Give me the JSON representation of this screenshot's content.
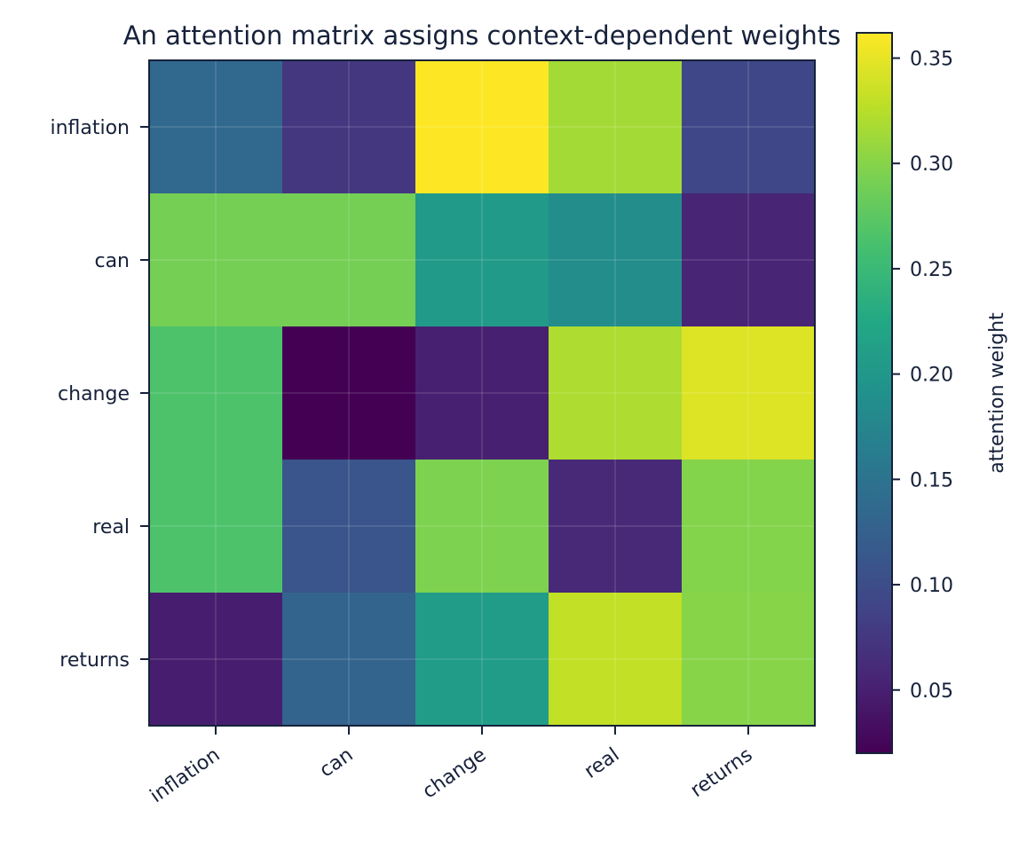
{
  "chart_data": {
    "type": "heatmap",
    "title": "An attention matrix assigns context-dependent weights",
    "row_labels": [
      "inflation",
      "can",
      "change",
      "real",
      "returns"
    ],
    "col_labels": [
      "inflation",
      "can",
      "change",
      "real",
      "returns"
    ],
    "values": [
      [
        0.135,
        0.075,
        0.362,
        0.315,
        0.092
      ],
      [
        0.29,
        0.29,
        0.205,
        0.185,
        0.055
      ],
      [
        0.265,
        0.02,
        0.05,
        0.32,
        0.345
      ],
      [
        0.265,
        0.11,
        0.295,
        0.06,
        0.298
      ],
      [
        0.048,
        0.13,
        0.208,
        0.33,
        0.3
      ]
    ],
    "colorbar": {
      "label": "attention weight",
      "ticks": [
        "0.05",
        "0.10",
        "0.15",
        "0.20",
        "0.25",
        "0.30",
        "0.35"
      ],
      "tick_values": [
        0.05,
        0.1,
        0.15,
        0.2,
        0.25,
        0.3,
        0.35
      ],
      "range": [
        0.02,
        0.362
      ]
    },
    "colormap": "viridis",
    "grid": true
  }
}
